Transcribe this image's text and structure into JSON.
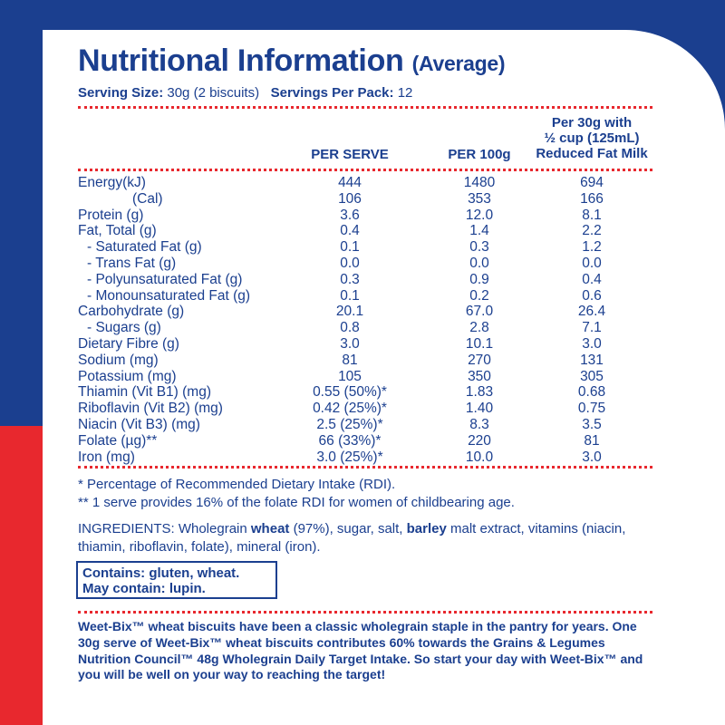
{
  "title": "Nutritional Information",
  "title_suffix": "(Average)",
  "serving": {
    "size_label": "Serving Size:",
    "size_value": "30g (2 biscuits)",
    "per_pack_label": "Servings Per Pack:",
    "per_pack_value": "12"
  },
  "columns": {
    "per_serve": "PER SERVE",
    "per_100g": "PER 100g",
    "milk_line1": "Per 30g with",
    "milk_line2": "½ cup (125mL)",
    "milk_line3": "Reduced Fat Milk"
  },
  "rows": [
    {
      "name": "Energy(kJ)",
      "per_serve": "444",
      "per_100g": "1480",
      "with_milk": "694"
    },
    {
      "name": "(Cal)",
      "per_serve": "106",
      "per_100g": "353",
      "with_milk": "166"
    },
    {
      "name": "Protein (g)",
      "per_serve": "3.6",
      "per_100g": "12.0",
      "with_milk": "8.1"
    },
    {
      "name": "Fat, Total (g)",
      "per_serve": "0.4",
      "per_100g": "1.4",
      "with_milk": "2.2"
    },
    {
      "name": "- Saturated Fat (g)",
      "per_serve": "0.1",
      "per_100g": "0.3",
      "with_milk": "1.2"
    },
    {
      "name": "- Trans Fat (g)",
      "per_serve": "0.0",
      "per_100g": "0.0",
      "with_milk": "0.0"
    },
    {
      "name": "- Polyunsaturated Fat (g)",
      "per_serve": "0.3",
      "per_100g": "0.9",
      "with_milk": "0.4"
    },
    {
      "name": "- Monounsaturated Fat (g)",
      "per_serve": "0.1",
      "per_100g": "0.2",
      "with_milk": "0.6"
    },
    {
      "name": "Carbohydrate (g)",
      "per_serve": "20.1",
      "per_100g": "67.0",
      "with_milk": "26.4"
    },
    {
      "name": "- Sugars (g)",
      "per_serve": "0.8",
      "per_100g": "2.8",
      "with_milk": "7.1"
    },
    {
      "name": "Dietary Fibre (g)",
      "per_serve": "3.0",
      "per_100g": "10.1",
      "with_milk": "3.0"
    },
    {
      "name": "Sodium (mg)",
      "per_serve": "81",
      "per_100g": "270",
      "with_milk": "131"
    },
    {
      "name": "Potassium (mg)",
      "per_serve": "105",
      "per_100g": "350",
      "with_milk": "305"
    },
    {
      "name": "Thiamin (Vit B1) (mg)",
      "per_serve": "0.55 (50%)*",
      "per_100g": "1.83",
      "with_milk": "0.68"
    },
    {
      "name": "Riboflavin (Vit B2) (mg)",
      "per_serve": "0.42 (25%)*",
      "per_100g": "1.40",
      "with_milk": "0.75"
    },
    {
      "name": "Niacin (Vit B3) (mg)",
      "per_serve": "2.5 (25%)*",
      "per_100g": "8.3",
      "with_milk": "3.5"
    },
    {
      "name": "Folate (µg)**",
      "per_serve": "66 (33%)*",
      "per_100g": "220",
      "with_milk": "81"
    },
    {
      "name": "Iron (mg)",
      "per_serve": "3.0 (25%)*",
      "per_100g": "10.0",
      "with_milk": "3.0"
    }
  ],
  "footnotes": {
    "rdi": "* Percentage of Recommended Dietary Intake (RDI).",
    "folate": "** 1 serve provides 16% of the folate RDI for women of childbearing age."
  },
  "ingredients": {
    "part1": "INGREDIENTS: Wholegrain ",
    "bold1": "wheat",
    "part2": " (97%), sugar, salt, ",
    "bold2": "barley",
    "part3": " malt extract, vitamins (niacin, thiamin, riboflavin, folate), mineral (iron)."
  },
  "allergens": {
    "contains": "Contains: gluten, wheat.",
    "may_contain": "May contain: lupin."
  },
  "description": "Weet-Bix™ wheat biscuits have been a classic wholegrain staple in the pantry for years. One 30g serve of Weet-Bix™ wheat biscuits contributes 60% towards the Grains & Legumes Nutrition Council™ 48g Wholegrain Daily Target Intake. So start your day with Weet-Bix™ and you will be well on your way to reaching the target!",
  "colors": {
    "navy": "#1b3f8f",
    "red": "#e8282e",
    "panel": "#ffffff"
  }
}
